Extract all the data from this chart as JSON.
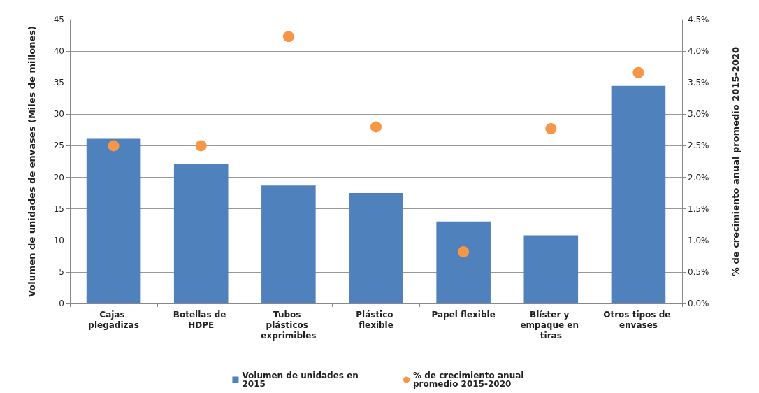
{
  "chart_data": {
    "type": "bar",
    "ylabel": "Volumen de unidades de envases (Miles de millones)",
    "y2label": "% de crecimiento anual promedio 2015-2020",
    "categories": [
      "Cajas plegadizas",
      "Botellas de HDPE",
      "Tubos plásticos exprimibles",
      "Plástico flexible",
      "Papel flexible",
      "Blíster y empaque en tiras",
      "Otros tipos de envases"
    ],
    "series": [
      {
        "name": "Volumen de unidades en 2015",
        "color": "#4f81bd",
        "values": [
          26.1,
          22.1,
          18.7,
          17.5,
          13.0,
          10.8,
          34.5
        ]
      },
      {
        "name": "% de crecimiento anual promedio 2015-2020",
        "type": "scatter",
        "axis": "y2",
        "color": "#f79646",
        "values": [
          2.5,
          2.5,
          4.23,
          2.8,
          0.82,
          2.77,
          3.66
        ]
      }
    ],
    "ylim": [
      0,
      45
    ],
    "yticks": [
      0,
      5,
      10,
      15,
      20,
      25,
      30,
      35,
      40,
      45
    ],
    "y2lim": [
      0,
      4.5
    ],
    "y2ticks": [
      {
        "value": 0,
        "label": "0.0%"
      },
      {
        "value": 0.5,
        "label": "0.5%"
      },
      {
        "value": 1,
        "label": "1.0%"
      },
      {
        "value": 1.5,
        "label": "1.5%"
      },
      {
        "value": 2,
        "label": "2.0%"
      },
      {
        "value": 2.5,
        "label": "2.5%"
      },
      {
        "value": 3,
        "label": "3.0%"
      },
      {
        "value": 3.5,
        "label": "3.5%"
      },
      {
        "value": 4,
        "label": "4.0%"
      },
      {
        "value": 4.5,
        "label": "4.5%"
      }
    ],
    "grid": "y",
    "legend": "bottom",
    "marker": "circle"
  }
}
